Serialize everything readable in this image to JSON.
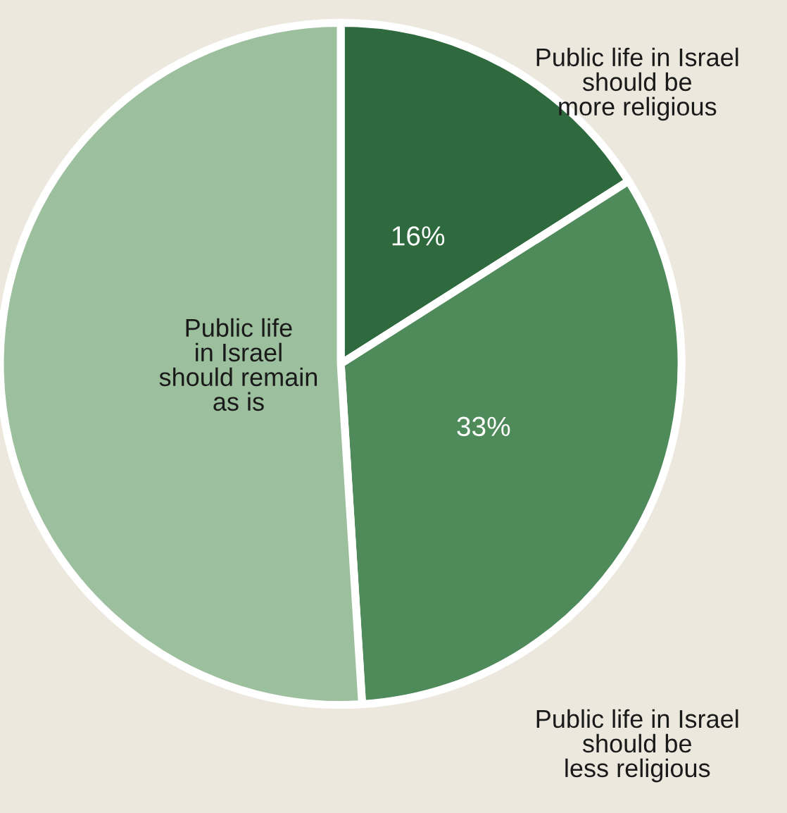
{
  "chart_data": {
    "type": "pie",
    "categories": [
      "Public life in Israel\nshould be\nmore religious",
      "Public life in Israel\nshould be\nless religious",
      "Public life\nin Israel\nshould remain\nas is"
    ],
    "values": [
      16,
      33,
      51
    ],
    "value_labels": [
      "16%",
      "33%",
      null
    ],
    "colors": [
      "#2f6a3f",
      "#4f8a5b",
      "#9cbf9d"
    ]
  }
}
